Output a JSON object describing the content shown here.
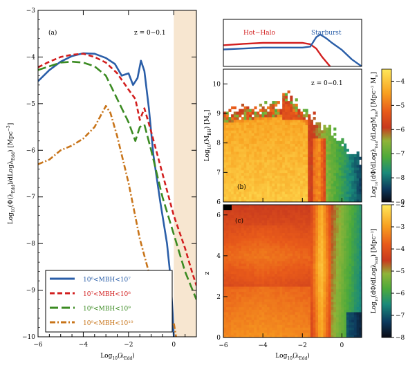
{
  "panel_a": {
    "letter": "(a)",
    "redshift": "z = 0−0.1",
    "xlabel": "Log10(λEdd)",
    "ylabel": "Log10(Φ(λEdd)/dLogλEdd) [Mpc⁻³]",
    "legend": [
      {
        "text": "10⁶<MBH<10⁷",
        "color": "#2a5ea8",
        "dash": "solid"
      },
      {
        "text": "10⁷<MBH<10⁸",
        "color": "#d21f1f",
        "dash": "dash"
      },
      {
        "text": "10⁸<MBH<10⁹",
        "color": "#3b8b22",
        "dash": "longdash"
      },
      {
        "text": "10⁹<MBH<10¹⁰",
        "color": "#c87419",
        "dash": "dashdot"
      }
    ]
  },
  "panel_top": {
    "label_hot": "Hot−Halo",
    "label_star": "Starburst",
    "color_hot": "#d21f1f",
    "color_star": "#2a5ea8"
  },
  "panel_b": {
    "letter": "(b)",
    "redshift": "z = 0−0.1",
    "ylabel": "Log10(MBH) [M⊙]",
    "cbar_label": "Log10(dΦ/dLogλEdd/dLogMBH) [Mpc⁻³ M⊙⁻¹]"
  },
  "panel_c": {
    "letter": "(c)",
    "ylabel": "z",
    "xlabel": "Log10(λEdd)",
    "cbar_label": "Log10(dΦ/dLogλEdd) [Mpc⁻³]"
  },
  "chart_data": [
    {
      "type": "line",
      "title": "",
      "xlabel": "Log10(λEdd)",
      "ylabel": "Log10(Φ(λEdd)/dLogλEdd) [Mpc⁻³]",
      "xlim": [
        -6,
        1
      ],
      "ylim": [
        -10,
        -3
      ],
      "xticks": [
        -6,
        -4,
        -2,
        0
      ],
      "yticks": [
        -10,
        -9,
        -8,
        -7,
        -6,
        -5,
        -4,
        -3
      ],
      "shaded_region": [
        0,
        1
      ],
      "legend_position": "bottom-left",
      "series": [
        {
          "name": "10⁶<MBH<10⁷",
          "x": [
            -6,
            -5.5,
            -5,
            -4.5,
            -4,
            -3.5,
            -3,
            -2.6,
            -2.3,
            -2.0,
            -1.8,
            -1.6,
            -1.45,
            -1.3,
            -1.1,
            -0.9,
            -0.6,
            -0.3,
            -0.15,
            -0.05,
            0.0
          ],
          "y": [
            -4.52,
            -4.28,
            -4.1,
            -3.98,
            -3.92,
            -3.93,
            -4.02,
            -4.15,
            -4.4,
            -4.35,
            -4.6,
            -4.45,
            -4.08,
            -4.3,
            -5.1,
            -6.1,
            -7.1,
            -8.0,
            -8.7,
            -9.5,
            -10
          ]
        },
        {
          "name": "10⁷<MBH<10⁸",
          "x": [
            -6,
            -5.5,
            -5,
            -4.5,
            -4,
            -3.5,
            -3,
            -2.5,
            -2.0,
            -1.7,
            -1.5,
            -1.3,
            -1.0,
            -0.5,
            0.0,
            0.5,
            0.8,
            1.0
          ],
          "y": [
            -4.22,
            -4.1,
            -4.0,
            -3.95,
            -3.93,
            -4.0,
            -4.12,
            -4.35,
            -4.7,
            -4.9,
            -5.35,
            -5.1,
            -5.6,
            -6.5,
            -7.4,
            -8.1,
            -8.6,
            -8.9
          ]
        },
        {
          "name": "10⁸<MBH<10⁹",
          "x": [
            -6,
            -5.5,
            -5,
            -4.5,
            -4,
            -3.5,
            -3,
            -2.5,
            -2.0,
            -1.7,
            -1.5,
            -1.3,
            -1.0,
            -0.5,
            0.0,
            0.5,
            1.0
          ],
          "y": [
            -4.28,
            -4.2,
            -4.12,
            -4.1,
            -4.12,
            -4.2,
            -4.4,
            -4.9,
            -5.4,
            -5.8,
            -5.5,
            -5.45,
            -6.0,
            -7.0,
            -7.8,
            -8.6,
            -9.2
          ]
        },
        {
          "name": "10⁹<MBH<10¹⁰",
          "x": [
            -6,
            -5.5,
            -5,
            -4.5,
            -4,
            -3.5,
            -3,
            -2.8,
            -2.5,
            -2.0,
            -1.5,
            -1.0,
            -0.5,
            -0.3,
            0.0,
            0.1
          ],
          "y": [
            -6.3,
            -6.2,
            -6.0,
            -5.9,
            -5.75,
            -5.5,
            -5.05,
            -5.2,
            -5.7,
            -6.7,
            -7.9,
            -8.8,
            -9.4,
            -9.8,
            -9.7,
            -10
          ]
        }
      ]
    },
    {
      "type": "line",
      "title": "",
      "xlim": [
        -6,
        1
      ],
      "series": [
        {
          "name": "Hot−Halo",
          "x": [
            -6,
            -5,
            -4,
            -3,
            -2,
            -1.6,
            -1.3,
            -1.0,
            -0.6,
            -0.5
          ],
          "y": [
            0.45,
            0.48,
            0.5,
            0.5,
            0.5,
            0.47,
            0.38,
            0.2,
            0.0,
            -0.1
          ]
        },
        {
          "name": "Starburst",
          "x": [
            -6,
            -5,
            -4,
            -3,
            -2,
            -1.6,
            -1.3,
            -1.1,
            -0.8,
            -0.5,
            0,
            0.5,
            1.0
          ],
          "y": [
            0.36,
            0.38,
            0.4,
            0.4,
            0.4,
            0.42,
            0.62,
            0.68,
            0.6,
            0.5,
            0.35,
            0.15,
            0.0
          ]
        }
      ]
    },
    {
      "type": "heatmap",
      "title": "",
      "xlabel": "",
      "ylabel": "Log10(MBH) [M⊙]",
      "xlim": [
        -6,
        1
      ],
      "ylim": [
        6,
        10.5
      ],
      "xticks": [
        -6,
        -4,
        -2,
        0
      ],
      "yticks": [
        6,
        7,
        8,
        9,
        10
      ],
      "colorbar_range": [
        -9,
        -3.5
      ],
      "colorbar_ticks": [
        -9,
        -8,
        -7,
        -6,
        -5,
        -4
      ]
    },
    {
      "type": "heatmap",
      "title": "",
      "xlabel": "Log10(λEdd)",
      "ylabel": "z",
      "xlim": [
        -6,
        1
      ],
      "ylim": [
        0,
        6.5
      ],
      "xticks": [
        -6,
        -4,
        -2,
        0
      ],
      "yticks": [
        0,
        2,
        4,
        6
      ],
      "colorbar_range": [
        -8,
        -2
      ],
      "colorbar_ticks": [
        -8,
        -7,
        -6,
        -5,
        -4,
        -3,
        -2
      ]
    }
  ]
}
